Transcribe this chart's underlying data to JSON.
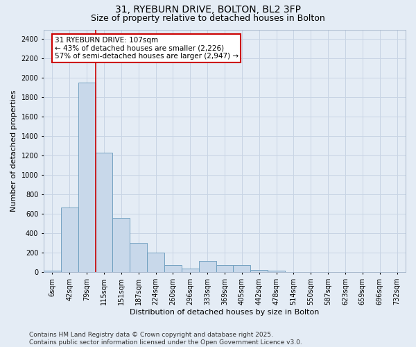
{
  "title_line1": "31, RYEBURN DRIVE, BOLTON, BL2 3FP",
  "title_line2": "Size of property relative to detached houses in Bolton",
  "xlabel": "Distribution of detached houses by size in Bolton",
  "ylabel": "Number of detached properties",
  "bins": [
    "6sqm",
    "42sqm",
    "79sqm",
    "115sqm",
    "151sqm",
    "187sqm",
    "224sqm",
    "260sqm",
    "296sqm",
    "333sqm",
    "369sqm",
    "405sqm",
    "442sqm",
    "478sqm",
    "514sqm",
    "550sqm",
    "587sqm",
    "623sqm",
    "659sqm",
    "696sqm",
    "732sqm"
  ],
  "bar_values": [
    18,
    670,
    1950,
    1230,
    560,
    300,
    200,
    75,
    40,
    115,
    75,
    75,
    25,
    15,
    5,
    5,
    5,
    0,
    0,
    0,
    0
  ],
  "bar_color": "#c8d8ea",
  "bar_edge_color": "#6699bb",
  "vline_color": "#cc0000",
  "annotation_text": "31 RYEBURN DRIVE: 107sqm\n← 43% of detached houses are smaller (2,226)\n57% of semi-detached houses are larger (2,947) →",
  "annotation_box_facecolor": "white",
  "annotation_box_edgecolor": "#cc0000",
  "ylim": [
    0,
    2500
  ],
  "yticks": [
    0,
    200,
    400,
    600,
    800,
    1000,
    1200,
    1400,
    1600,
    1800,
    2000,
    2200,
    2400
  ],
  "grid_color": "#c8d4e4",
  "background_color": "#e4ecf5",
  "footnote": "Contains HM Land Registry data © Crown copyright and database right 2025.\nContains public sector information licensed under the Open Government Licence v3.0.",
  "title_fontsize": 10,
  "subtitle_fontsize": 9,
  "axis_label_fontsize": 8,
  "tick_fontsize": 7,
  "annotation_fontsize": 7.5,
  "footnote_fontsize": 6.5
}
